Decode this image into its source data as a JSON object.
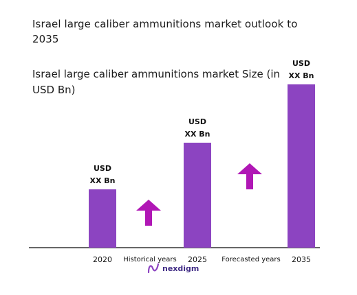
{
  "title": "Israel large caliber ammunitions market outlook to 2035",
  "subtitle": "Israel large caliber ammunitions market Size (in USD Bn)",
  "chart_data": {
    "type": "bar",
    "categories": [
      "2020",
      "2025",
      "2035"
    ],
    "values": [
      1.0,
      1.8,
      2.8
    ],
    "value_labels": [
      [
        "USD",
        "XX Bn"
      ],
      [
        "USD",
        "XX Bn"
      ],
      [
        "USD",
        "XX Bn"
      ]
    ],
    "period_labels": [
      "Historical years",
      "Forecasted years"
    ],
    "title": "Israel large caliber ammunitions market outlook to 2035",
    "subtitle": "Israel large caliber ammunitions market Size (in USD Bn)",
    "xlabel": "",
    "ylabel": "",
    "ylim": [
      0,
      3.0
    ],
    "grid": false,
    "legend": "none",
    "colors": {
      "bar": "#8c44c1",
      "arrow": "#b017b5",
      "axis": "#333333"
    }
  },
  "logo": {
    "text": "nexdigm",
    "icon": "nexdigm-logo-icon",
    "color": "#3f2a84"
  }
}
